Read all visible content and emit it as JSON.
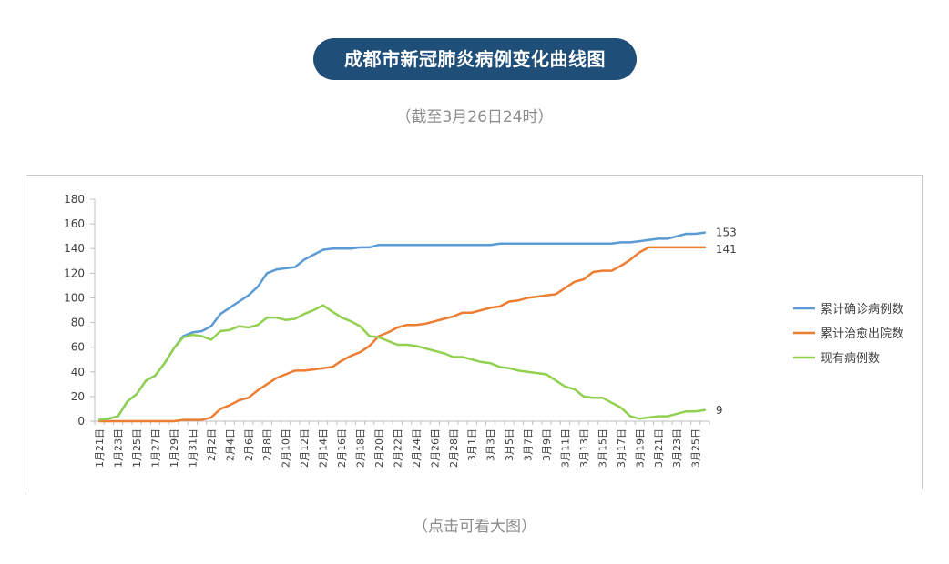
{
  "header": {
    "title": "成都市新冠肺炎病例变化曲线图",
    "subtitle": "（截至3月26日24时）"
  },
  "footer": {
    "link_label": "（点击可看大图）"
  },
  "colors": {
    "pill": "#1f4e79",
    "confirmed": "#5b9bd5",
    "recovered": "#ed7d31",
    "active": "#92d050"
  },
  "chart_data": {
    "type": "line",
    "title": "",
    "xlabel": "",
    "ylabel": "",
    "ylim": [
      0,
      180
    ],
    "yticks": [
      0,
      20,
      40,
      60,
      80,
      100,
      120,
      140,
      160,
      180
    ],
    "grid": false,
    "legend_position": "right",
    "x": [
      "1月21日",
      "1月22日",
      "1月23日",
      "1月24日",
      "1月25日",
      "1月26日",
      "1月27日",
      "1月28日",
      "1月29日",
      "1月30日",
      "1月31日",
      "2月1日",
      "2月2日",
      "2月3日",
      "2月4日",
      "2月5日",
      "2月6日",
      "2月7日",
      "2月8日",
      "2月9日",
      "2月10日",
      "2月11日",
      "2月12日",
      "2月13日",
      "2月14日",
      "2月15日",
      "2月16日",
      "2月17日",
      "2月18日",
      "2月19日",
      "2月20日",
      "2月21日",
      "2月22日",
      "2月23日",
      "2月24日",
      "2月25日",
      "2月26日",
      "2月27日",
      "2月28日",
      "2月29日",
      "3月1日",
      "3月2日",
      "3月3日",
      "3月4日",
      "3月5日",
      "3月6日",
      "3月7日",
      "3月8日",
      "3月9日",
      "3月10日",
      "3月11日",
      "3月12日",
      "3月13日",
      "3月14日",
      "3月15日",
      "3月16日",
      "3月17日",
      "3月18日",
      "3月19日",
      "3月20日",
      "3月21日",
      "3月22日",
      "3月23日",
      "3月24日",
      "3月25日",
      "3月26日"
    ],
    "x_tick_labels": [
      "1月21日",
      "1月23日",
      "1月25日",
      "1月27日",
      "1月29日",
      "1月31日",
      "2月2日",
      "2月4日",
      "2月6日",
      "2月8日",
      "2月10日",
      "2月12日",
      "2月14日",
      "2月16日",
      "2月18日",
      "2月20日",
      "2月22日",
      "2月24日",
      "2月26日",
      "2月28日",
      "3月1日",
      "3月3日",
      "3月5日",
      "3月7日",
      "3月9日",
      "3月11日",
      "3月13日",
      "3月15日",
      "3月17日",
      "3月19日",
      "3月21日",
      "3月23日",
      "3月25日"
    ],
    "series": [
      {
        "name": "累计确诊病例数",
        "end_label": "153",
        "values": [
          1,
          2,
          4,
          16,
          22,
          33,
          37,
          47,
          59,
          69,
          72,
          73,
          77,
          87,
          92,
          97,
          102,
          109,
          120,
          123,
          124,
          125,
          131,
          135,
          139,
          140,
          140,
          140,
          141,
          141,
          143,
          143,
          143,
          143,
          143,
          143,
          143,
          143,
          143,
          143,
          143,
          143,
          143,
          144,
          144,
          144,
          144,
          144,
          144,
          144,
          144,
          144,
          144,
          144,
          144,
          144,
          145,
          145,
          146,
          147,
          148,
          148,
          150,
          152,
          152,
          153
        ]
      },
      {
        "name": "累计治愈出院数",
        "end_label": "141",
        "values": [
          0,
          0,
          0,
          0,
          0,
          0,
          0,
          0,
          0,
          1,
          1,
          1,
          3,
          10,
          13,
          17,
          19,
          25,
          30,
          35,
          38,
          41,
          41,
          42,
          43,
          44,
          49,
          53,
          56,
          61,
          69,
          72,
          76,
          78,
          78,
          79,
          81,
          83,
          85,
          88,
          88,
          90,
          92,
          93,
          97,
          98,
          100,
          101,
          102,
          103,
          108,
          113,
          115,
          121,
          122,
          122,
          126,
          131,
          137,
          141,
          141,
          141,
          141,
          141,
          141,
          141
        ]
      },
      {
        "name": "现有病例数",
        "end_label": "9",
        "values": [
          1,
          2,
          4,
          16,
          22,
          33,
          37,
          47,
          59,
          68,
          70,
          69,
          66,
          73,
          74,
          77,
          76,
          78,
          84,
          84,
          82,
          83,
          87,
          90,
          94,
          89,
          84,
          81,
          77,
          69,
          68,
          65,
          62,
          62,
          61,
          59,
          57,
          55,
          52,
          52,
          50,
          48,
          47,
          44,
          43,
          41,
          40,
          39,
          38,
          33,
          28,
          26,
          20,
          19,
          19,
          15,
          11,
          4,
          2,
          3,
          4,
          4,
          6,
          8,
          8,
          9
        ]
      }
    ]
  }
}
